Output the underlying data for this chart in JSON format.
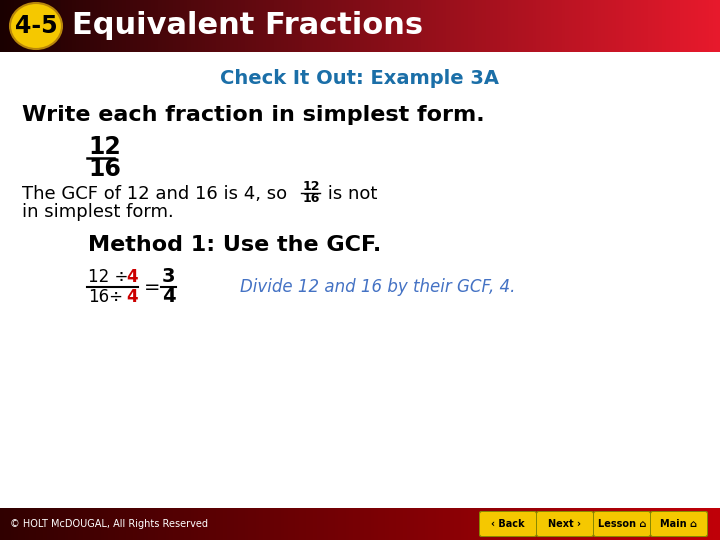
{
  "header_bg_left": "#1A0000",
  "header_bg_right": "#E8192C",
  "header_badge_color": "#F5C800",
  "header_badge_text": "4-5",
  "header_title": "Equivalent Fractions",
  "header_title_color": "#FFFFFF",
  "subtitle": "Check It Out: Example 3A",
  "subtitle_color": "#1B6FA8",
  "main_text": "Write each fraction in simplest form.",
  "main_text_color": "#000000",
  "fraction_num": "12",
  "fraction_den": "16",
  "fraction_color": "#000000",
  "explanation_color": "#000000",
  "method_text": "Method 1: Use the GCF.",
  "method_color": "#000000",
  "divide_color_normal": "#000000",
  "divide_color_red": "#CC0000",
  "result_num": "3",
  "result_den": "4",
  "result_color": "#000000",
  "hint_text": "Divide 12 and 16 by their GCF, 4.",
  "hint_color": "#4472C4",
  "footer_text": "© HOLT McDOUGAL, All Rights Reserved",
  "footer_text_color": "#FFFFFF",
  "button_color": "#F5C800",
  "button_labels": [
    "‹ Back",
    "Next ›",
    "Lesson ⌂",
    "Main ⌂"
  ],
  "bg_color": "#FFFFFF"
}
